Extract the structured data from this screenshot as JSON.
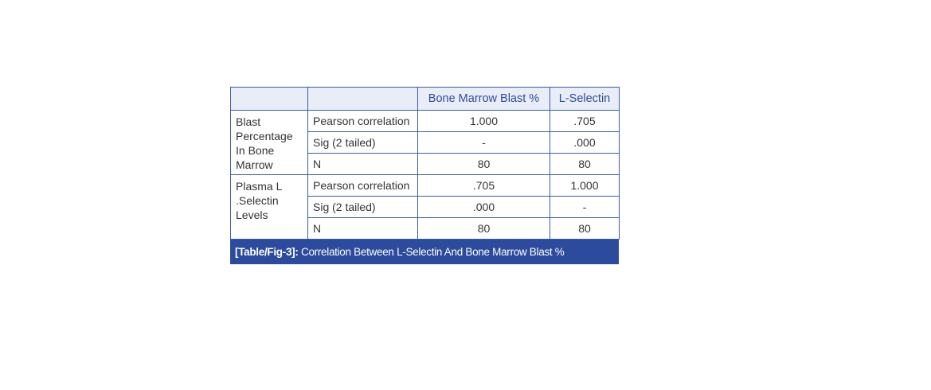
{
  "header": [
    "",
    "",
    "Bone Marrow Blast %",
    "L-Selectin"
  ],
  "groups": [
    {
      "label": "Blast Percentage In Bone Marrow",
      "rows": [
        [
          "Pearson correlation",
          "1.000",
          ".705"
        ],
        [
          "Sig (2 tailed)",
          "-",
          ".000"
        ],
        [
          "N",
          "80",
          "80"
        ]
      ]
    },
    {
      "label": "Plasma L .Selectin Levels",
      "rows": [
        [
          "Pearson correlation",
          ".705",
          "1.000"
        ],
        [
          "Sig (2 tailed)",
          ".000",
          "-"
        ],
        [
          "N",
          "80",
          "80"
        ]
      ]
    }
  ],
  "caption": {
    "label": "[Table/Fig-3]:",
    "text": " Correlation Between L-Selectin And Bone Marrow Blast %"
  },
  "colors": {
    "border": "#3a5aa8",
    "header_bg": "#e8edf7",
    "caption_bg": "#2c4b9c"
  }
}
